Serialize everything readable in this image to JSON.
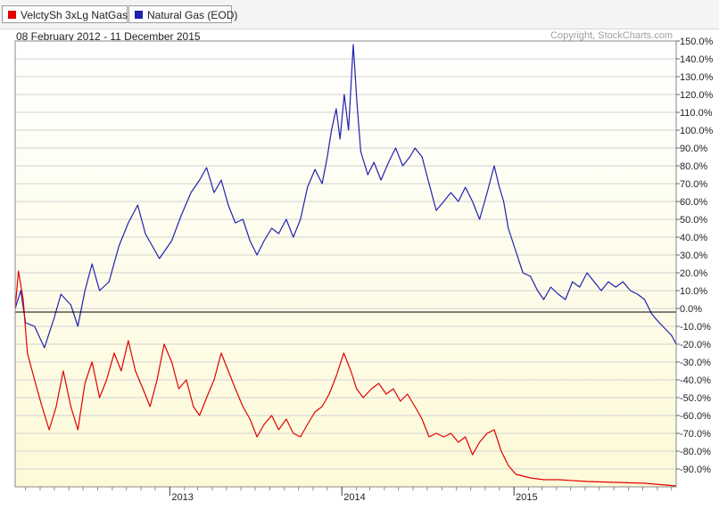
{
  "legend": [
    {
      "label": "VelctySh 3xLg NatGas",
      "color": "#e00000"
    },
    {
      "label": "Natural Gas (EOD)",
      "color": "#2020b0"
    }
  ],
  "date_range": "08 February 2012 - 11 December 2015",
  "copyright": "Copyright, StockCharts.com",
  "chart_data": {
    "type": "line",
    "title": "",
    "xlabel": "",
    "ylabel": "",
    "x_range": [
      "2012-02-08",
      "2015-12-11"
    ],
    "ylim": [
      -100,
      150
    ],
    "grid": true,
    "legend_placement": "top-left",
    "y_ticks": [
      "150.0%",
      "140.0%",
      "130.0%",
      "120.0%",
      "110.0%",
      "100.0%",
      "90.0%",
      "80.0%",
      "70.0%",
      "60.0%",
      "50.0%",
      "40.0%",
      "30.0%",
      "20.0%",
      "10.0%",
      "0.0%",
      "-10.0%",
      "-20.0%",
      "-30.0%",
      "-40.0%",
      "-50.0%",
      "-60.0%",
      "-70.0%",
      "-80.0%",
      "-90.0%"
    ],
    "x_ticks": [
      {
        "label": "2013",
        "date": "2013-01-01"
      },
      {
        "label": "2014",
        "date": "2014-01-01"
      },
      {
        "label": "2015",
        "date": "2015-01-01"
      }
    ],
    "series": [
      {
        "name": "Natural Gas (EOD)",
        "color": "#2020b0",
        "points": [
          [
            "2012-02-08",
            0
          ],
          [
            "2012-02-20",
            10
          ],
          [
            "2012-03-01",
            -8
          ],
          [
            "2012-03-20",
            -10
          ],
          [
            "2012-04-10",
            -22
          ],
          [
            "2012-05-01",
            -5
          ],
          [
            "2012-05-15",
            8
          ],
          [
            "2012-06-05",
            2
          ],
          [
            "2012-06-20",
            -10
          ],
          [
            "2012-07-05",
            10
          ],
          [
            "2012-07-20",
            25
          ],
          [
            "2012-08-05",
            10
          ],
          [
            "2012-08-25",
            15
          ],
          [
            "2012-09-15",
            35
          ],
          [
            "2012-10-05",
            48
          ],
          [
            "2012-10-25",
            58
          ],
          [
            "2012-11-10",
            42
          ],
          [
            "2012-11-25",
            35
          ],
          [
            "2012-12-10",
            28
          ],
          [
            "2013-01-05",
            38
          ],
          [
            "2013-01-25",
            52
          ],
          [
            "2013-02-15",
            65
          ],
          [
            "2013-03-05",
            72
          ],
          [
            "2013-03-20",
            79
          ],
          [
            "2013-04-05",
            65
          ],
          [
            "2013-04-20",
            72
          ],
          [
            "2013-05-05",
            58
          ],
          [
            "2013-05-20",
            48
          ],
          [
            "2013-06-05",
            50
          ],
          [
            "2013-06-20",
            38
          ],
          [
            "2013-07-05",
            30
          ],
          [
            "2013-07-20",
            38
          ],
          [
            "2013-08-05",
            45
          ],
          [
            "2013-08-20",
            42
          ],
          [
            "2013-09-05",
            50
          ],
          [
            "2013-09-20",
            40
          ],
          [
            "2013-10-05",
            50
          ],
          [
            "2013-10-20",
            68
          ],
          [
            "2013-11-05",
            78
          ],
          [
            "2013-11-20",
            70
          ],
          [
            "2013-12-01",
            85
          ],
          [
            "2013-12-10",
            100
          ],
          [
            "2013-12-20",
            112
          ],
          [
            "2013-12-28",
            95
          ],
          [
            "2014-01-06",
            120
          ],
          [
            "2014-01-15",
            100
          ],
          [
            "2014-01-25",
            148
          ],
          [
            "2014-02-02",
            115
          ],
          [
            "2014-02-10",
            88
          ],
          [
            "2014-02-25",
            75
          ],
          [
            "2014-03-10",
            82
          ],
          [
            "2014-03-25",
            72
          ],
          [
            "2014-04-10",
            82
          ],
          [
            "2014-04-25",
            90
          ],
          [
            "2014-05-10",
            80
          ],
          [
            "2014-05-25",
            85
          ],
          [
            "2014-06-05",
            90
          ],
          [
            "2014-06-20",
            85
          ],
          [
            "2014-07-05",
            70
          ],
          [
            "2014-07-20",
            55
          ],
          [
            "2014-08-05",
            60
          ],
          [
            "2014-08-20",
            65
          ],
          [
            "2014-09-05",
            60
          ],
          [
            "2014-09-20",
            68
          ],
          [
            "2014-10-05",
            60
          ],
          [
            "2014-10-20",
            50
          ],
          [
            "2014-11-05",
            65
          ],
          [
            "2014-11-20",
            80
          ],
          [
            "2014-12-01",
            68
          ],
          [
            "2014-12-10",
            60
          ],
          [
            "2014-12-20",
            45
          ],
          [
            "2015-01-05",
            32
          ],
          [
            "2015-01-20",
            20
          ],
          [
            "2015-02-05",
            18
          ],
          [
            "2015-02-20",
            10
          ],
          [
            "2015-03-05",
            5
          ],
          [
            "2015-03-20",
            12
          ],
          [
            "2015-04-05",
            8
          ],
          [
            "2015-04-20",
            5
          ],
          [
            "2015-05-05",
            15
          ],
          [
            "2015-05-20",
            12
          ],
          [
            "2015-06-05",
            20
          ],
          [
            "2015-06-20",
            15
          ],
          [
            "2015-07-05",
            10
          ],
          [
            "2015-07-20",
            15
          ],
          [
            "2015-08-05",
            12
          ],
          [
            "2015-08-20",
            15
          ],
          [
            "2015-09-05",
            10
          ],
          [
            "2015-09-20",
            8
          ],
          [
            "2015-10-05",
            5
          ],
          [
            "2015-10-20",
            -3
          ],
          [
            "2015-11-05",
            -8
          ],
          [
            "2015-11-20",
            -12
          ],
          [
            "2015-12-01",
            -15
          ],
          [
            "2015-12-11",
            -20
          ]
        ]
      },
      {
        "name": "VelctySh 3xLg NatGas",
        "color": "#e00000",
        "points": [
          [
            "2012-02-08",
            0
          ],
          [
            "2012-02-15",
            21
          ],
          [
            "2012-02-25",
            5
          ],
          [
            "2012-03-05",
            -25
          ],
          [
            "2012-03-20",
            -40
          ],
          [
            "2012-04-05",
            -55
          ],
          [
            "2012-04-20",
            -68
          ],
          [
            "2012-05-05",
            -55
          ],
          [
            "2012-05-20",
            -35
          ],
          [
            "2012-06-05",
            -55
          ],
          [
            "2012-06-20",
            -68
          ],
          [
            "2012-07-05",
            -42
          ],
          [
            "2012-07-20",
            -30
          ],
          [
            "2012-08-05",
            -50
          ],
          [
            "2012-08-20",
            -40
          ],
          [
            "2012-09-05",
            -25
          ],
          [
            "2012-09-20",
            -35
          ],
          [
            "2012-10-05",
            -18
          ],
          [
            "2012-10-20",
            -35
          ],
          [
            "2012-11-05",
            -45
          ],
          [
            "2012-11-20",
            -55
          ],
          [
            "2012-12-05",
            -40
          ],
          [
            "2012-12-20",
            -20
          ],
          [
            "2013-01-05",
            -30
          ],
          [
            "2013-01-20",
            -45
          ],
          [
            "2013-02-05",
            -40
          ],
          [
            "2013-02-20",
            -55
          ],
          [
            "2013-03-05",
            -60
          ],
          [
            "2013-03-20",
            -50
          ],
          [
            "2013-04-05",
            -40
          ],
          [
            "2013-04-20",
            -25
          ],
          [
            "2013-05-05",
            -35
          ],
          [
            "2013-05-20",
            -45
          ],
          [
            "2013-06-05",
            -55
          ],
          [
            "2013-06-20",
            -62
          ],
          [
            "2013-07-05",
            -72
          ],
          [
            "2013-07-20",
            -65
          ],
          [
            "2013-08-05",
            -60
          ],
          [
            "2013-08-20",
            -68
          ],
          [
            "2013-09-05",
            -62
          ],
          [
            "2013-09-20",
            -70
          ],
          [
            "2013-10-05",
            -72
          ],
          [
            "2013-10-20",
            -65
          ],
          [
            "2013-11-05",
            -58
          ],
          [
            "2013-11-20",
            -55
          ],
          [
            "2013-12-05",
            -48
          ],
          [
            "2013-12-20",
            -38
          ],
          [
            "2014-01-05",
            -25
          ],
          [
            "2014-01-20",
            -35
          ],
          [
            "2014-02-01",
            -45
          ],
          [
            "2014-02-15",
            -50
          ],
          [
            "2014-03-05",
            -45
          ],
          [
            "2014-03-20",
            -42
          ],
          [
            "2014-04-05",
            -48
          ],
          [
            "2014-04-20",
            -45
          ],
          [
            "2014-05-05",
            -52
          ],
          [
            "2014-05-20",
            -48
          ],
          [
            "2014-06-05",
            -55
          ],
          [
            "2014-06-20",
            -62
          ],
          [
            "2014-07-05",
            -72
          ],
          [
            "2014-07-20",
            -70
          ],
          [
            "2014-08-05",
            -72
          ],
          [
            "2014-08-20",
            -70
          ],
          [
            "2014-09-05",
            -75
          ],
          [
            "2014-09-20",
            -72
          ],
          [
            "2014-10-05",
            -82
          ],
          [
            "2014-10-20",
            -75
          ],
          [
            "2014-11-05",
            -70
          ],
          [
            "2014-11-20",
            -68
          ],
          [
            "2014-12-05",
            -80
          ],
          [
            "2014-12-20",
            -88
          ],
          [
            "2015-01-05",
            -93
          ],
          [
            "2015-02-05",
            -95
          ],
          [
            "2015-03-05",
            -96
          ],
          [
            "2015-04-05",
            -96
          ],
          [
            "2015-06-05",
            -97
          ],
          [
            "2015-08-05",
            -97.5
          ],
          [
            "2015-10-05",
            -98
          ],
          [
            "2015-12-11",
            -99.5
          ]
        ]
      }
    ]
  }
}
